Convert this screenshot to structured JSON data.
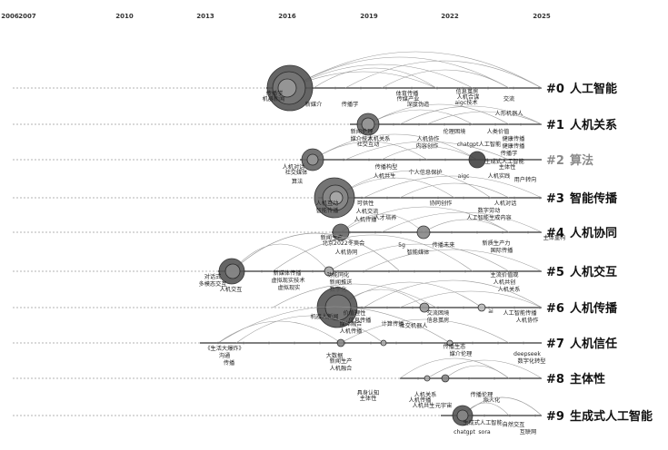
{
  "timeline": {
    "years": [
      {
        "label": "2006",
        "year": 2006
      },
      {
        "label": "2007",
        "year": 2007
      },
      {
        "label": "2010",
        "year": 2010
      },
      {
        "label": "2013",
        "year": 2013
      },
      {
        "label": "2016",
        "year": 2016
      },
      {
        "label": "2019",
        "year": 2019
      },
      {
        "label": "2022",
        "year": 2022
      },
      {
        "label": "2025",
        "year": 2025
      }
    ]
  },
  "clusters": [
    {
      "id": "#0",
      "name": "人工智能",
      "light": false,
      "keywords": [
        "传播学",
        "机器新闻",
        "新媒介",
        "传播学",
        "体育传播",
        "传媒产业",
        "深度伪造",
        "信息茧房",
        "人机合谋",
        "aigc技术",
        "交流",
        "人形机器人"
      ]
    },
    {
      "id": "#1",
      "name": "人机关系",
      "light": false,
      "keywords": [
        "新闻伦理",
        "媒介技术",
        "人机关系",
        "社交互动",
        "伦理困境",
        "人机协作",
        "chatgpt人工智能",
        "人类价值",
        "健康传播",
        "健康传播",
        "传播学",
        "内容创作"
      ]
    },
    {
      "id": "#2",
      "name": "算法",
      "light": true,
      "keywords": [
        "人机对话",
        "社交媒体",
        "算法",
        "传播构型",
        "个人信息保护",
        "人机共生",
        "aigc",
        "人机实践",
        "生成式人工智能",
        "主体性",
        "用户转向"
      ]
    },
    {
      "id": "#3",
      "name": "智能传播",
      "light": false,
      "keywords": [
        "人机互动",
        "智能传播",
        "可供性",
        "人机交流",
        "人机传播",
        "人才培养",
        "协同创作",
        "数字劳动",
        "人机对话",
        "人工智能生成内容"
      ]
    },
    {
      "id": "#4",
      "name": "人机协同",
      "light": false,
      "keywords": [
        "新闻生产",
        "北京2022冬奥会",
        "人机协同",
        "5g",
        "智能媒体",
        "传播未来",
        "新质生产力",
        "国际传播",
        "主体重构"
      ]
    },
    {
      "id": "#5",
      "name": "人机交互",
      "light": false,
      "keywords": [
        "对话式",
        "多模态交互",
        "人机交互",
        "新媒体传播",
        "虚拟现实技术",
        "虚拟现实",
        "功能同化",
        "新闻推送",
        "数字化",
        "主流价值观",
        "人机共创",
        "人机关系"
      ]
    },
    {
      "id": "#6",
      "name": "人机传播",
      "light": false,
      "keywords": [
        "价值理性",
        "信息传播",
        "机器人新闻",
        "计算传播",
        "交流困境",
        "信息茧房",
        "ai",
        "人工智能传播",
        "人机协作",
        "媒体融合",
        "社交机器人",
        "人机传播"
      ]
    },
    {
      "id": "#7",
      "name": "人机信任",
      "light": false,
      "keywords": [
        "《生活大爆炸》",
        "沟通",
        "传播",
        "大数据",
        "新闻生产",
        "人机融合",
        "传播生态",
        "deepseek",
        "媒介伦理",
        "数字化转型"
      ]
    },
    {
      "id": "#8",
      "name": "主体性",
      "light": false,
      "keywords": [
        "具身认知",
        "主体性",
        "人机传播",
        "人机关系",
        "人机共生",
        "元宇宙",
        "传播伦理",
        "拟人化"
      ]
    },
    {
      "id": "#9",
      "name": "生成式人工智能",
      "light": false,
      "keywords": [
        "生成式人工智能",
        "chatgpt",
        "sora",
        "自然交互",
        "互联网"
      ]
    }
  ]
}
